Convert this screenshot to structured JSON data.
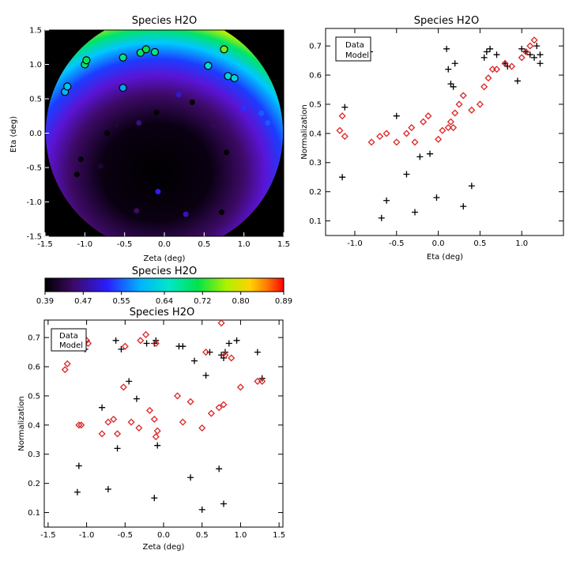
{
  "chart_data": [
    {
      "type": "heatmap",
      "title": "Species H2O",
      "xlabel": "Zeta (deg)",
      "ylabel": "Eta (deg)",
      "xlim": [
        -1.5,
        1.5
      ],
      "ylim": [
        -1.5,
        1.5
      ],
      "xticks": [
        "-1.5",
        "-1.0",
        "-0.5",
        "0.0",
        "0.5",
        "1.0",
        "1.5"
      ],
      "yticks": [
        "-1.5",
        "-1.0",
        "-0.5",
        "0.0",
        "0.5",
        "1.0",
        "1.5"
      ],
      "colorbar": {
        "ticks": [
          "0.39",
          "0.47",
          "0.55",
          "0.64",
          "0.72",
          "0.80",
          "0.89"
        ],
        "range": [
          0.39,
          0.89
        ],
        "colormap": "rainbow-black-violet-blue-cyan-green-yellow-red"
      },
      "field_background": "#000000",
      "points": [
        {
          "zeta": -1.25,
          "eta": 0.6,
          "value": 0.59
        },
        {
          "zeta": -1.22,
          "eta": 0.68,
          "value": 0.61
        },
        {
          "zeta": -1.0,
          "eta": 1.0,
          "value": 0.69
        },
        {
          "zeta": -0.98,
          "eta": 1.06,
          "value": 0.7
        },
        {
          "zeta": -0.52,
          "eta": 1.1,
          "value": 0.68
        },
        {
          "zeta": -0.3,
          "eta": 1.17,
          "value": 0.69
        },
        {
          "zeta": -0.23,
          "eta": 1.22,
          "value": 0.71
        },
        {
          "zeta": -0.12,
          "eta": 1.18,
          "value": 0.68
        },
        {
          "zeta": 0.55,
          "eta": 0.98,
          "value": 0.64
        },
        {
          "zeta": 0.75,
          "eta": 1.22,
          "value": 0.75
        },
        {
          "zeta": 0.8,
          "eta": 0.83,
          "value": 0.63
        },
        {
          "zeta": 0.88,
          "eta": 0.8,
          "value": 0.63
        },
        {
          "zeta": -0.52,
          "eta": 0.66,
          "value": 0.58
        },
        {
          "zeta": 0.18,
          "eta": 0.56,
          "value": 0.5
        },
        {
          "zeta": 1.0,
          "eta": 0.36,
          "value": 0.53
        },
        {
          "zeta": 1.22,
          "eta": 0.29,
          "value": 0.55
        },
        {
          "zeta": 1.3,
          "eta": 0.15,
          "value": 0.55
        },
        {
          "zeta": 0.78,
          "eta": 0.18,
          "value": 0.46
        },
        {
          "zeta": 0.62,
          "eta": 0.12,
          "value": 0.44
        },
        {
          "zeta": -0.32,
          "eta": 0.15,
          "value": 0.46
        },
        {
          "zeta": -0.6,
          "eta": 0.11,
          "value": 0.42
        },
        {
          "zeta": -0.72,
          "eta": 0.0,
          "value": 0.39
        },
        {
          "zeta": -0.1,
          "eta": 0.3,
          "value": 0.39
        },
        {
          "zeta": 0.35,
          "eta": 0.45,
          "value": 0.39
        },
        {
          "zeta": 0.78,
          "eta": -0.28,
          "value": 0.39
        },
        {
          "zeta": -1.05,
          "eta": -0.38,
          "value": 0.39
        },
        {
          "zeta": -1.1,
          "eta": -0.6,
          "value": 0.39
        },
        {
          "zeta": -0.8,
          "eta": -0.48,
          "value": 0.42
        },
        {
          "zeta": -0.08,
          "eta": -0.85,
          "value": 0.52
        },
        {
          "zeta": -0.35,
          "eta": -1.13,
          "value": 0.45
        },
        {
          "zeta": 0.27,
          "eta": -1.18,
          "value": 0.49
        },
        {
          "zeta": 0.72,
          "eta": -1.15,
          "value": 0.39
        }
      ]
    },
    {
      "type": "scatter",
      "title": "Species H2O",
      "xlabel": "Eta (deg)",
      "ylabel": "Normalization",
      "xlim": [
        -1.35,
        1.5
      ],
      "ylim": [
        0.05,
        0.76
      ],
      "xticks": [
        -1.0,
        -0.5,
        0.0,
        0.5,
        1.0
      ],
      "yticks": [
        0.1,
        0.2,
        0.3,
        0.4,
        0.5,
        0.6,
        0.7
      ],
      "legend": {
        "placement": "top-left",
        "entries": [
          "Data",
          "Model"
        ]
      },
      "series": [
        {
          "name": "Data",
          "marker": "plus",
          "color": "#000000",
          "points": [
            [
              -1.15,
              0.25
            ],
            [
              -1.12,
              0.49
            ],
            [
              -0.82,
              0.68
            ],
            [
              -0.68,
              0.11
            ],
            [
              -0.62,
              0.17
            ],
            [
              -0.5,
              0.46
            ],
            [
              -0.38,
              0.26
            ],
            [
              -0.28,
              0.13
            ],
            [
              -0.22,
              0.32
            ],
            [
              -0.1,
              0.33
            ],
            [
              -0.02,
              0.18
            ],
            [
              0.1,
              0.69
            ],
            [
              0.12,
              0.62
            ],
            [
              0.15,
              0.57
            ],
            [
              0.18,
              0.56
            ],
            [
              0.2,
              0.64
            ],
            [
              0.3,
              0.15
            ],
            [
              0.4,
              0.22
            ],
            [
              0.55,
              0.66
            ],
            [
              0.58,
              0.68
            ],
            [
              0.62,
              0.69
            ],
            [
              0.7,
              0.67
            ],
            [
              0.8,
              0.64
            ],
            [
              0.83,
              0.63
            ],
            [
              0.95,
              0.58
            ],
            [
              1.0,
              0.69
            ],
            [
              1.05,
              0.68
            ],
            [
              1.1,
              0.67
            ],
            [
              1.15,
              0.66
            ],
            [
              1.18,
              0.7
            ],
            [
              1.22,
              0.64
            ],
            [
              1.22,
              0.67
            ]
          ]
        },
        {
          "name": "Model",
          "marker": "diamond",
          "color": "#dd2222",
          "points": [
            [
              -1.18,
              0.41
            ],
            [
              -1.15,
              0.46
            ],
            [
              -1.12,
              0.39
            ],
            [
              -0.8,
              0.37
            ],
            [
              -0.7,
              0.39
            ],
            [
              -0.62,
              0.4
            ],
            [
              -0.5,
              0.37
            ],
            [
              -0.38,
              0.4
            ],
            [
              -0.32,
              0.42
            ],
            [
              -0.28,
              0.37
            ],
            [
              -0.18,
              0.44
            ],
            [
              -0.12,
              0.46
            ],
            [
              0.0,
              0.38
            ],
            [
              0.05,
              0.41
            ],
            [
              0.12,
              0.42
            ],
            [
              0.15,
              0.44
            ],
            [
              0.18,
              0.42
            ],
            [
              0.2,
              0.47
            ],
            [
              0.25,
              0.5
            ],
            [
              0.3,
              0.53
            ],
            [
              0.4,
              0.48
            ],
            [
              0.5,
              0.5
            ],
            [
              0.55,
              0.56
            ],
            [
              0.6,
              0.59
            ],
            [
              0.65,
              0.62
            ],
            [
              0.7,
              0.62
            ],
            [
              0.8,
              0.64
            ],
            [
              0.88,
              0.63
            ],
            [
              1.0,
              0.66
            ],
            [
              1.05,
              0.68
            ],
            [
              1.1,
              0.7
            ],
            [
              1.15,
              0.72
            ]
          ]
        }
      ]
    },
    {
      "type": "scatter",
      "title": "Species H2O",
      "xlabel": "Zeta (deg)",
      "ylabel": "Normalization",
      "xlim": [
        -1.55,
        1.55
      ],
      "ylim": [
        0.05,
        0.76
      ],
      "xticks": [
        -1.5,
        -1.0,
        -0.5,
        0.0,
        0.5,
        1.0,
        1.5
      ],
      "yticks": [
        0.1,
        0.2,
        0.3,
        0.4,
        0.5,
        0.6,
        0.7
      ],
      "legend": {
        "placement": "top-left",
        "entries": [
          "Data",
          "Model"
        ]
      },
      "series": [
        {
          "name": "Data",
          "marker": "plus",
          "color": "#000000",
          "points": [
            [
              -1.32,
              0.68
            ],
            [
              -1.12,
              0.17
            ],
            [
              -1.1,
              0.26
            ],
            [
              -1.02,
              0.66
            ],
            [
              -0.8,
              0.46
            ],
            [
              -0.72,
              0.18
            ],
            [
              -0.62,
              0.69
            ],
            [
              -0.6,
              0.32
            ],
            [
              -0.55,
              0.66
            ],
            [
              -0.45,
              0.55
            ],
            [
              -0.35,
              0.49
            ],
            [
              -0.22,
              0.68
            ],
            [
              -0.12,
              0.15
            ],
            [
              -0.1,
              0.69
            ],
            [
              -0.08,
              0.33
            ],
            [
              0.2,
              0.67
            ],
            [
              0.25,
              0.67
            ],
            [
              0.35,
              0.22
            ],
            [
              0.4,
              0.62
            ],
            [
              0.5,
              0.11
            ],
            [
              0.55,
              0.57
            ],
            [
              0.6,
              0.65
            ],
            [
              0.72,
              0.25
            ],
            [
              0.75,
              0.64
            ],
            [
              0.78,
              0.13
            ],
            [
              0.8,
              0.65
            ],
            [
              0.85,
              0.68
            ],
            [
              0.95,
              0.69
            ],
            [
              1.22,
              0.65
            ],
            [
              1.28,
              0.56
            ],
            [
              0.78,
              0.63
            ],
            [
              -0.12,
              0.68
            ]
          ]
        },
        {
          "name": "Model",
          "marker": "diamond",
          "color": "#dd2222",
          "points": [
            [
              -1.28,
              0.59
            ],
            [
              -1.25,
              0.61
            ],
            [
              -1.1,
              0.4
            ],
            [
              -1.07,
              0.4
            ],
            [
              -1.0,
              0.69
            ],
            [
              -0.98,
              0.68
            ],
            [
              -0.8,
              0.37
            ],
            [
              -0.72,
              0.41
            ],
            [
              -0.65,
              0.42
            ],
            [
              -0.6,
              0.37
            ],
            [
              -0.52,
              0.53
            ],
            [
              -0.5,
              0.67
            ],
            [
              -0.42,
              0.41
            ],
            [
              -0.32,
              0.39
            ],
            [
              -0.3,
              0.69
            ],
            [
              -0.23,
              0.71
            ],
            [
              -0.18,
              0.45
            ],
            [
              -0.12,
              0.42
            ],
            [
              -0.1,
              0.68
            ],
            [
              -0.08,
              0.38
            ],
            [
              -0.1,
              0.36
            ],
            [
              0.18,
              0.5
            ],
            [
              0.25,
              0.41
            ],
            [
              0.35,
              0.48
            ],
            [
              0.5,
              0.39
            ],
            [
              0.55,
              0.65
            ],
            [
              0.62,
              0.44
            ],
            [
              0.72,
              0.46
            ],
            [
              0.75,
              0.75
            ],
            [
              0.78,
              0.47
            ],
            [
              0.8,
              0.64
            ],
            [
              0.88,
              0.63
            ],
            [
              1.0,
              0.53
            ],
            [
              1.22,
              0.55
            ],
            [
              1.28,
              0.55
            ]
          ]
        }
      ]
    }
  ]
}
